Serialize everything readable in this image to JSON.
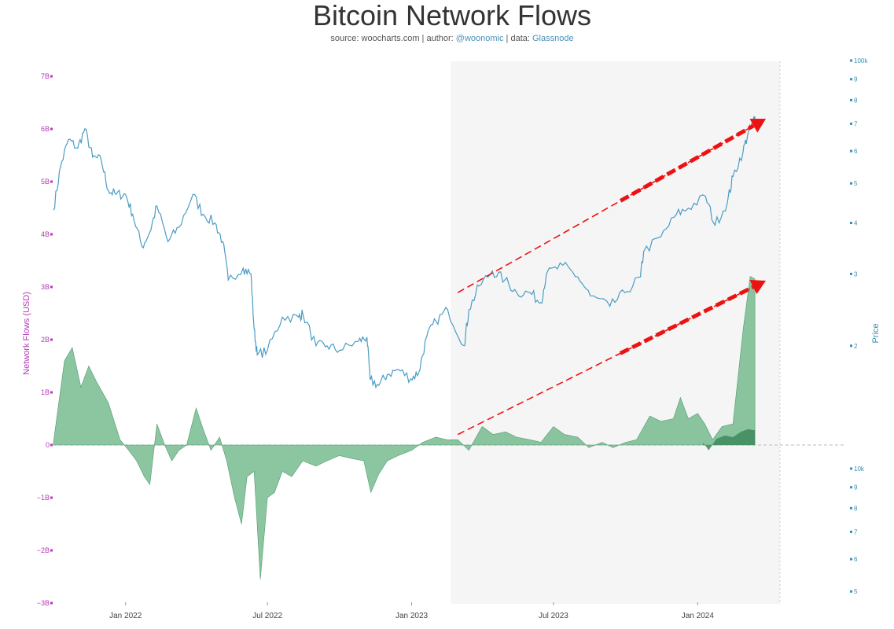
{
  "header": {
    "title": "Bitcoin Network Flows",
    "source_prefix": "source: woocharts.com | author: ",
    "author": "@woonomic",
    "data_sep": " | data: ",
    "data_source": "Glassnode"
  },
  "colors": {
    "price_line": "#4a9dc4",
    "flows_fill": "#6fb88a",
    "flows_dark": "#3d8a5c",
    "arrow": "#ee1111",
    "left_axis": "#b23cb5",
    "right_axis": "#3a8fb0",
    "highlight": "#f5f5f5"
  },
  "chart_data": {
    "type": "area",
    "title": "Bitcoin Network Flows",
    "ylabel_left": "Network Flows (USD)",
    "ylabel_right": "Price",
    "x_ticks": [
      "Jan 2022",
      "Jul 2022",
      "Jan 2023",
      "Jul 2023",
      "Jan 2024"
    ],
    "x_range": [
      "2021-10-01",
      "2024-04-15"
    ],
    "y_left_ticks": [
      "7B",
      "6B",
      "5B",
      "4B",
      "3B",
      "2B",
      "1B",
      "0",
      "−1B",
      "−2B",
      "−3B"
    ],
    "y_left_range": [
      -3000000000,
      7000000000
    ],
    "y_right_upper_ticks": [
      "100k",
      "9",
      "8",
      "7",
      "6",
      "5",
      "4",
      "3",
      "2"
    ],
    "y_right_lower_ticks": [
      "10k",
      "9",
      "8",
      "7",
      "6",
      "5"
    ],
    "y_right_scale": "log",
    "highlight_range": [
      "2023-02-20",
      "2024-04-15"
    ],
    "series": [
      {
        "name": "Price",
        "axis": "right",
        "points": [
          [
            "2021-10-01",
            43000
          ],
          [
            "2021-10-10",
            55000
          ],
          [
            "2021-10-20",
            64000
          ],
          [
            "2021-11-01",
            61000
          ],
          [
            "2021-11-10",
            68000
          ],
          [
            "2021-11-20",
            58000
          ],
          [
            "2021-12-01",
            57000
          ],
          [
            "2021-12-10",
            48000
          ],
          [
            "2021-12-20",
            47000
          ],
          [
            "2022-01-01",
            47000
          ],
          [
            "2022-01-10",
            42000
          ],
          [
            "2022-01-22",
            35000
          ],
          [
            "2022-02-01",
            38000
          ],
          [
            "2022-02-10",
            44000
          ],
          [
            "2022-02-24",
            36000
          ],
          [
            "2022-03-10",
            39000
          ],
          [
            "2022-03-28",
            47000
          ],
          [
            "2022-04-10",
            42000
          ],
          [
            "2022-04-25",
            40000
          ],
          [
            "2022-05-05",
            36000
          ],
          [
            "2022-05-12",
            29000
          ],
          [
            "2022-05-31",
            31000
          ],
          [
            "2022-06-10",
            30000
          ],
          [
            "2022-06-14",
            22000
          ],
          [
            "2022-06-18",
            19000
          ],
          [
            "2022-07-01",
            19500
          ],
          [
            "2022-07-20",
            23500
          ],
          [
            "2022-08-10",
            23500
          ],
          [
            "2022-08-15",
            24000
          ],
          [
            "2022-09-01",
            20000
          ],
          [
            "2022-09-15",
            20000
          ],
          [
            "2022-10-01",
            19500
          ],
          [
            "2022-10-25",
            20500
          ],
          [
            "2022-11-05",
            21000
          ],
          [
            "2022-11-09",
            16500
          ],
          [
            "2022-11-20",
            16000
          ],
          [
            "2022-12-01",
            17000
          ],
          [
            "2022-12-15",
            17500
          ],
          [
            "2022-12-31",
            16600
          ],
          [
            "2023-01-10",
            17200
          ],
          [
            "2023-01-20",
            21000
          ],
          [
            "2023-02-01",
            23000
          ],
          [
            "2023-02-16",
            24500
          ],
          [
            "2023-03-09",
            20000
          ],
          [
            "2023-03-15",
            24500
          ],
          [
            "2023-03-28",
            28000
          ],
          [
            "2023-04-14",
            30500
          ],
          [
            "2023-04-30",
            29000
          ],
          [
            "2023-05-15",
            27000
          ],
          [
            "2023-06-01",
            27000
          ],
          [
            "2023-06-15",
            25500
          ],
          [
            "2023-06-22",
            30000
          ],
          [
            "2023-07-13",
            31500
          ],
          [
            "2023-08-01",
            29500
          ],
          [
            "2023-08-17",
            26500
          ],
          [
            "2023-09-11",
            25000
          ],
          [
            "2023-09-30",
            27000
          ],
          [
            "2023-10-20",
            29500
          ],
          [
            "2023-10-24",
            34000
          ],
          [
            "2023-11-15",
            37000
          ],
          [
            "2023-12-05",
            42000
          ],
          [
            "2023-12-20",
            43500
          ],
          [
            "2024-01-11",
            46500
          ],
          [
            "2024-01-23",
            39500
          ],
          [
            "2024-02-08",
            45000
          ],
          [
            "2024-02-15",
            52000
          ],
          [
            "2024-02-28",
            60000
          ],
          [
            "2024-03-05",
            66000
          ],
          [
            "2024-03-12",
            71000
          ],
          [
            "2024-03-14",
            73000
          ]
        ]
      },
      {
        "name": "Network Flows",
        "axis": "left",
        "points": [
          [
            "2021-10-01",
            0.05
          ],
          [
            "2021-10-15",
            1.6
          ],
          [
            "2021-10-25",
            1.85
          ],
          [
            "2021-11-05",
            1.1
          ],
          [
            "2021-11-15",
            1.5
          ],
          [
            "2021-11-25",
            1.2
          ],
          [
            "2021-12-10",
            0.8
          ],
          [
            "2021-12-25",
            0.1
          ],
          [
            "2022-01-05",
            -0.1
          ],
          [
            "2022-01-15",
            -0.3
          ],
          [
            "2022-01-25",
            -0.6
          ],
          [
            "2022-02-01",
            -0.75
          ],
          [
            "2022-02-10",
            0.4
          ],
          [
            "2022-02-20",
            0.0
          ],
          [
            "2022-03-01",
            -0.3
          ],
          [
            "2022-03-10",
            -0.1
          ],
          [
            "2022-03-20",
            0.0
          ],
          [
            "2022-04-01",
            0.7
          ],
          [
            "2022-04-10",
            0.3
          ],
          [
            "2022-04-20",
            -0.1
          ],
          [
            "2022-05-01",
            0.15
          ],
          [
            "2022-05-10",
            -0.3
          ],
          [
            "2022-05-20",
            -1.0
          ],
          [
            "2022-05-29",
            -1.5
          ],
          [
            "2022-06-05",
            -0.6
          ],
          [
            "2022-06-14",
            -0.5
          ],
          [
            "2022-06-22",
            -2.55
          ],
          [
            "2022-07-01",
            -1.0
          ],
          [
            "2022-07-10",
            -0.9
          ],
          [
            "2022-07-20",
            -0.5
          ],
          [
            "2022-08-01",
            -0.6
          ],
          [
            "2022-08-15",
            -0.3
          ],
          [
            "2022-09-01",
            -0.4
          ],
          [
            "2022-09-15",
            -0.3
          ],
          [
            "2022-10-01",
            -0.2
          ],
          [
            "2022-10-15",
            -0.25
          ],
          [
            "2022-11-01",
            -0.3
          ],
          [
            "2022-11-10",
            -0.9
          ],
          [
            "2022-11-20",
            -0.55
          ],
          [
            "2022-12-01",
            -0.3
          ],
          [
            "2022-12-15",
            -0.2
          ],
          [
            "2023-01-01",
            -0.1
          ],
          [
            "2023-01-15",
            0.05
          ],
          [
            "2023-02-01",
            0.15
          ],
          [
            "2023-02-15",
            0.1
          ],
          [
            "2023-03-01",
            0.1
          ],
          [
            "2023-03-15",
            -0.1
          ],
          [
            "2023-04-01",
            0.35
          ],
          [
            "2023-04-15",
            0.2
          ],
          [
            "2023-05-01",
            0.25
          ],
          [
            "2023-05-15",
            0.15
          ],
          [
            "2023-06-01",
            0.1
          ],
          [
            "2023-06-15",
            0.05
          ],
          [
            "2023-07-01",
            0.35
          ],
          [
            "2023-07-15",
            0.2
          ],
          [
            "2023-08-01",
            0.15
          ],
          [
            "2023-08-15",
            -0.05
          ],
          [
            "2023-09-01",
            0.05
          ],
          [
            "2023-09-15",
            -0.05
          ],
          [
            "2023-10-01",
            0.05
          ],
          [
            "2023-10-15",
            0.1
          ],
          [
            "2023-11-01",
            0.55
          ],
          [
            "2023-11-15",
            0.45
          ],
          [
            "2023-12-01",
            0.5
          ],
          [
            "2023-12-10",
            0.9
          ],
          [
            "2023-12-20",
            0.5
          ],
          [
            "2024-01-01",
            0.6
          ],
          [
            "2024-01-10",
            0.4
          ],
          [
            "2024-01-20",
            0.1
          ],
          [
            "2024-02-01",
            0.35
          ],
          [
            "2024-02-15",
            0.4
          ],
          [
            "2024-02-28",
            2.2
          ],
          [
            "2024-03-08",
            3.2
          ],
          [
            "2024-03-14",
            3.15
          ]
        ]
      },
      {
        "name": "Network Flows (dark overlay)",
        "axis": "left",
        "points": [
          [
            "2024-01-08",
            0.05
          ],
          [
            "2024-01-15",
            -0.1
          ],
          [
            "2024-01-25",
            0.12
          ],
          [
            "2024-02-05",
            0.18
          ],
          [
            "2024-02-15",
            0.15
          ],
          [
            "2024-02-25",
            0.25
          ],
          [
            "2024-03-05",
            0.3
          ],
          [
            "2024-03-14",
            0.28
          ]
        ]
      }
    ],
    "annotations": [
      {
        "type": "trend-arrow",
        "from": [
          "2023-03-01",
          27000
        ],
        "to": [
          "2024-03-28",
          72000
        ],
        "axis": "right"
      },
      {
        "type": "trend-arrow",
        "from": [
          "2023-03-01",
          0.2
        ],
        "to": [
          "2024-03-28",
          3.12
        ],
        "axis": "left"
      }
    ]
  }
}
